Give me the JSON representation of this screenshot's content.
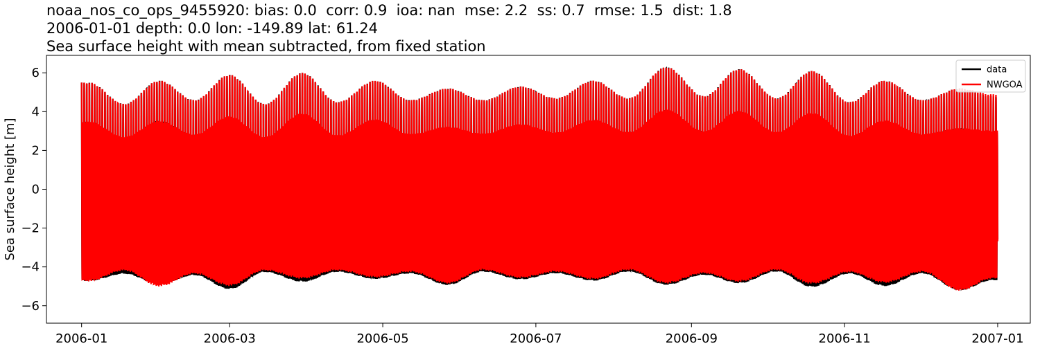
{
  "chart_data": {
    "type": "line",
    "title_lines": [
      "noaa_nos_co_ops_9455920: bias: 0.0  corr: 0.9  ioa: nan  mse: 2.2  ss: 0.7  rmse: 1.5  dist: 1.8",
      "2006-01-01 depth: 0.0 lon: -149.89 lat: 61.24",
      "Sea surface height with mean subtracted, from fixed station"
    ],
    "xlabel": "",
    "ylabel": "Sea surface height [m]",
    "x_range": [
      "2005-12-18",
      "2007-01-14"
    ],
    "ylim": [
      -6.9,
      6.9
    ],
    "x_ticks": [
      "2006-01",
      "2006-03",
      "2006-05",
      "2006-07",
      "2006-09",
      "2006-11",
      "2007-01"
    ],
    "y_ticks": [
      6,
      4,
      2,
      0,
      -2,
      -4,
      -6
    ],
    "grid": false,
    "legend_position": "top-right",
    "series": [
      {
        "name": "data",
        "color": "#000000",
        "x_start": "2006-01-01",
        "x_end": "2007-01-01",
        "semi_monthly_envelope": {
          "x": [
            "2006-01-04",
            "2006-01-18",
            "2006-02-01",
            "2006-02-15",
            "2006-03-01",
            "2006-03-15",
            "2006-03-30",
            "2006-04-13",
            "2006-04-28",
            "2006-05-12",
            "2006-05-27",
            "2006-06-10",
            "2006-06-25",
            "2006-07-09",
            "2006-07-24",
            "2006-08-07",
            "2006-08-22",
            "2006-09-06",
            "2006-09-20",
            "2006-10-05",
            "2006-10-19",
            "2006-11-03",
            "2006-11-17",
            "2006-12-02",
            "2006-12-17",
            "2006-12-30"
          ],
          "max": [
            5.5,
            4.4,
            5.6,
            4.6,
            5.9,
            4.4,
            6.0,
            4.5,
            5.6,
            4.6,
            5.2,
            4.6,
            5.3,
            4.7,
            5.6,
            4.7,
            6.3,
            4.8,
            6.2,
            4.7,
            6.1,
            4.5,
            5.6,
            4.6,
            5.2,
            4.8
          ],
          "min": [
            -5.7,
            -5.2,
            -5.9,
            -5.3,
            -6.2,
            -5.1,
            -5.8,
            -5.1,
            -5.6,
            -5.2,
            -5.9,
            -5.1,
            -5.6,
            -5.2,
            -5.7,
            -5.1,
            -6.0,
            -5.3,
            -5.9,
            -5.1,
            -6.1,
            -5.2,
            -6.0,
            -5.2,
            -6.2,
            -5.6
          ]
        }
      },
      {
        "name": "NWGOA",
        "color": "#ff0000",
        "x_start": "2006-01-01",
        "x_end": "2007-01-01",
        "semi_monthly_envelope": {
          "x": [
            "2006-01-04",
            "2006-01-18",
            "2006-02-01",
            "2006-02-15",
            "2006-03-01",
            "2006-03-15",
            "2006-03-30",
            "2006-04-13",
            "2006-04-28",
            "2006-05-12",
            "2006-05-27",
            "2006-06-10",
            "2006-06-25",
            "2006-07-09",
            "2006-07-24",
            "2006-08-07",
            "2006-08-22",
            "2006-09-06",
            "2006-09-20",
            "2006-10-05",
            "2006-10-19",
            "2006-11-03",
            "2006-11-17",
            "2006-12-02",
            "2006-12-17",
            "2006-12-30"
          ],
          "max": [
            5.5,
            4.4,
            5.6,
            4.6,
            5.9,
            4.4,
            6.0,
            4.5,
            5.6,
            4.6,
            5.2,
            4.6,
            5.3,
            4.7,
            5.6,
            4.7,
            6.3,
            4.8,
            6.2,
            4.7,
            6.1,
            4.5,
            5.6,
            4.6,
            5.2,
            4.9
          ],
          "min": [
            -5.7,
            -5.0,
            -6.0,
            -5.2,
            -6.0,
            -5.0,
            -5.6,
            -5.0,
            -5.5,
            -5.1,
            -5.8,
            -5.0,
            -5.5,
            -5.1,
            -5.6,
            -5.0,
            -5.9,
            -5.2,
            -5.8,
            -5.0,
            -5.9,
            -5.1,
            -5.8,
            -5.1,
            -6.2,
            -5.5
          ]
        }
      }
    ]
  }
}
